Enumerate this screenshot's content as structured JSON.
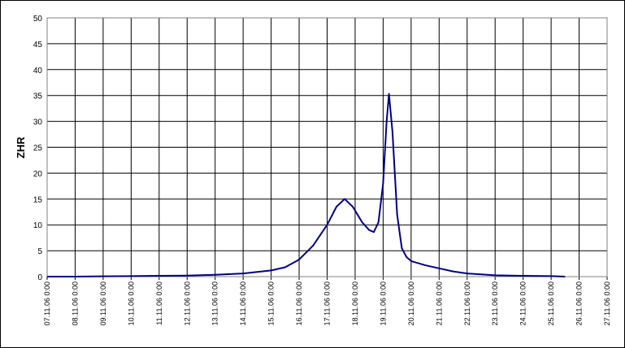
{
  "chart_data": {
    "type": "line",
    "y_label": "ZHR",
    "x": [
      "07.11.06 0:00",
      "08.11.06 0:00",
      "09.11.06 0:00",
      "10.11.06 0:00",
      "11.11.06 0:00",
      "12.11.06 0:00",
      "13.11.06 0:00",
      "14.11.06 0:00",
      "15.11.06 0:00",
      "15.11.06 12:00",
      "16.11.06 0:00",
      "16.11.06 12:00",
      "17.11.06 0:00",
      "17.11.06 8:00",
      "17.11.06 15:00",
      "17.11.06 22:00",
      "18.11.06 6:00",
      "18.11.06 12:00",
      "18.11.06 16:00",
      "18.11.06 20:00",
      "19.11.06 0:00",
      "19.11.06 3:00",
      "19.11.06 5:00",
      "19.11.06 8:00",
      "19.11.06 12:00",
      "19.11.06 16:00",
      "19.11.06 20:00",
      "20.11.06 0:00",
      "20.11.06 12:00",
      "21.11.06 0:00",
      "21.11.06 12:00",
      "22.11.06 0:00",
      "23.11.06 0:00",
      "24.11.06 0:00",
      "25.11.06 0:00",
      "25.11.06 12:00"
    ],
    "series": [
      {
        "name": "ZHR",
        "color": "#000080",
        "values": [
          0,
          0,
          0.05,
          0.1,
          0.15,
          0.2,
          0.35,
          0.6,
          1.2,
          1.8,
          3.3,
          6,
          10,
          13.5,
          15,
          13.5,
          10.5,
          9,
          8.6,
          10.5,
          18,
          30,
          35.3,
          28,
          12,
          5.5,
          3.8,
          3,
          2.2,
          1.6,
          1.0,
          0.6,
          0.25,
          0.15,
          0.1,
          0
        ]
      }
    ],
    "xlim": [
      "07.11.06 0:00",
      "27.11.06 0:00"
    ],
    "xticks": [
      "07.11.06 0:00",
      "08.11.06 0:00",
      "09.11.06 0:00",
      "10.11.06 0:00",
      "11.11.06 0:00",
      "12.11.06 0:00",
      "13.11.06 0:00",
      "14.11.06 0:00",
      "15.11.06 0:00",
      "16.11.06 0:00",
      "17.11.06 0:00",
      "18.11.06 0:00",
      "19.11.06 0:00",
      "20.11.06 0:00",
      "21.11.06 0:00",
      "22.11.06 0:00",
      "23.11.06 0:00",
      "24.11.06 0:00",
      "25.11.06 0:00",
      "26.11.06 0:00",
      "27.11.06 0:00"
    ],
    "ylim": [
      0,
      50
    ],
    "yticks": [
      0,
      5,
      10,
      15,
      20,
      25,
      30,
      35,
      40,
      45,
      50
    ],
    "grid": true
  }
}
